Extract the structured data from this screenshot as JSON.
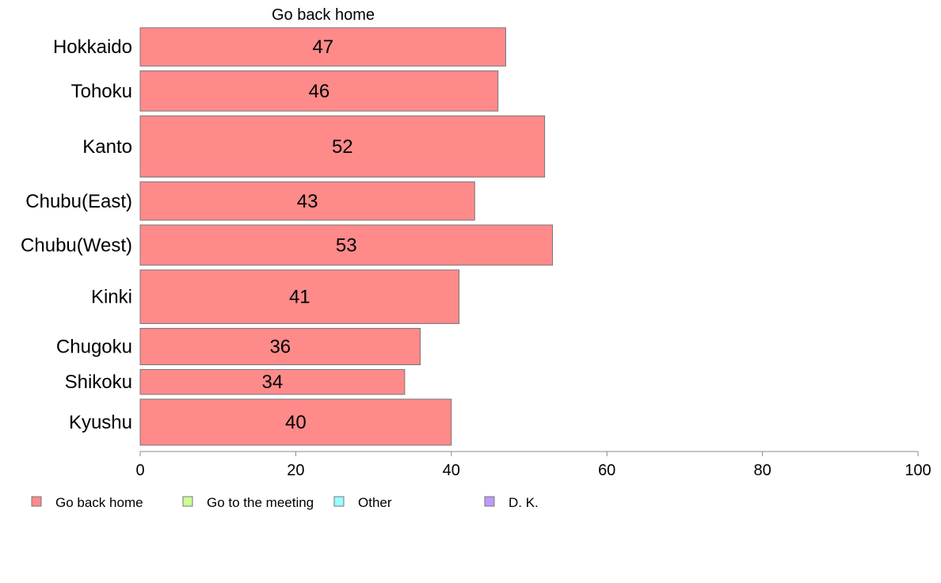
{
  "chart_data": {
    "type": "bar",
    "orientation": "horizontal",
    "series_title": "Go back home",
    "categories": [
      "Hokkaido",
      "Tohoku",
      "Kanto",
      "Chubu(East)",
      "Chubu(West)",
      "Kinki",
      "Chugoku",
      "Shikoku",
      "Kyushu"
    ],
    "series": [
      {
        "name": "Go back home",
        "values": [
          47,
          46,
          52,
          43,
          53,
          41,
          36,
          34,
          40
        ],
        "value_labels": [
          "47",
          "46",
          "52",
          "43",
          "53",
          "41",
          "36",
          "34",
          "40"
        ],
        "color": "#ff8a8a"
      }
    ],
    "relative_bar_widths": [
      1.0,
      1.05,
      1.6,
      1.0,
      1.05,
      1.4,
      0.95,
      0.65,
      1.2
    ],
    "xlim": [
      0,
      100
    ],
    "xticks": [
      0,
      20,
      40,
      60,
      80,
      100
    ],
    "xtick_labels": [
      "0",
      "20",
      "40",
      "60",
      "80",
      "100"
    ],
    "grid": false,
    "legend_position": "bottom",
    "legend": [
      {
        "label": "Go back home",
        "color": "#ff8a8a"
      },
      {
        "label": "Go to the meeting",
        "color": "#ccff99"
      },
      {
        "label": "Other",
        "color": "#99ffff"
      },
      {
        "label": "D. K.",
        "color": "#c099ff"
      }
    ]
  }
}
